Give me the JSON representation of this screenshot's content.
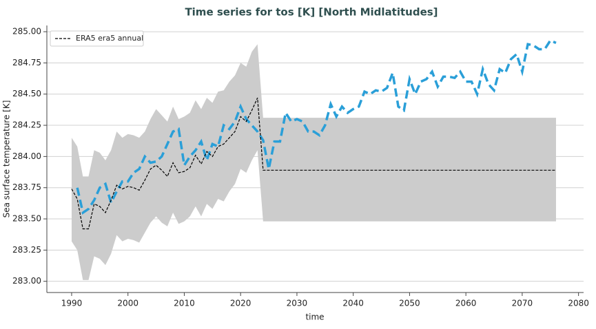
{
  "chart_data": {
    "type": "line",
    "title": "Time series for tos [K] [North Midlatitudes]",
    "xlabel": "time",
    "ylabel": "Sea surface temperature [K]",
    "xlim": [
      1985.6,
      2080.9
    ],
    "ylim": [
      282.91,
      285.05
    ],
    "xticks": [
      1990,
      2000,
      2010,
      2020,
      2030,
      2040,
      2050,
      2060,
      2070,
      2080
    ],
    "yticks": [
      {
        "value": 283,
        "label": "283.00"
      },
      {
        "value": 283.25,
        "label": "283.25"
      },
      {
        "value": 283.5,
        "label": "283.50"
      },
      {
        "value": 283.75,
        "label": "283.75"
      },
      {
        "value": 284,
        "label": "284.00"
      },
      {
        "value": 284.25,
        "label": "284.25"
      },
      {
        "value": 284.5,
        "label": "284.50"
      },
      {
        "value": 284.75,
        "label": "284.75"
      },
      {
        "value": 285,
        "label": "285.00"
      }
    ],
    "grid": true,
    "legend": "upper left",
    "band": {
      "color": "#cccccc",
      "x": [
        1990,
        1991,
        1992,
        1993,
        1994,
        1995,
        1996,
        1997,
        1998,
        1999,
        2000,
        2001,
        2002,
        2003,
        2004,
        2005,
        2006,
        2007,
        2008,
        2009,
        2010,
        2011,
        2012,
        2013,
        2014,
        2015,
        2016,
        2017,
        2018,
        2019,
        2020,
        2021,
        2022,
        2023,
        2024,
        2076
      ],
      "upper": [
        284.15,
        284.08,
        283.84,
        283.84,
        284.05,
        284.03,
        283.97,
        284.05,
        284.2,
        284.15,
        284.18,
        284.17,
        284.15,
        284.2,
        284.3,
        284.38,
        284.33,
        284.28,
        284.4,
        284.3,
        284.32,
        284.35,
        284.45,
        284.38,
        284.47,
        284.43,
        284.52,
        284.53,
        284.6,
        284.65,
        284.75,
        284.72,
        284.84,
        284.9,
        284.31,
        284.31
      ],
      "lower": [
        283.32,
        283.25,
        283.01,
        283.01,
        283.2,
        283.18,
        283.13,
        283.22,
        283.37,
        283.32,
        283.34,
        283.33,
        283.31,
        283.39,
        283.47,
        283.52,
        283.47,
        283.44,
        283.55,
        283.46,
        283.48,
        283.52,
        283.6,
        283.52,
        283.62,
        283.58,
        283.66,
        283.64,
        283.72,
        283.78,
        283.9,
        283.87,
        283.97,
        284.05,
        283.48,
        283.48
      ]
    },
    "series": [
      {
        "color": "#2a9fd8",
        "x": [
          1991,
          1992,
          1993,
          1994,
          1995,
          1996,
          1997,
          1998,
          1999,
          2000,
          2001,
          2002,
          2003,
          2004,
          2005,
          2006,
          2007,
          2008,
          2009,
          2010,
          2011,
          2012,
          2013,
          2014,
          2015,
          2016,
          2017,
          2018,
          2019,
          2020,
          2021,
          2022,
          2023,
          2024,
          2025,
          2026,
          2027,
          2028,
          2029,
          2030,
          2031,
          2032,
          2033,
          2034,
          2035,
          2036,
          2037,
          2038,
          2039,
          2040,
          2041,
          2042,
          2043,
          2044,
          2045,
          2046,
          2047,
          2048,
          2049,
          2050,
          2051,
          2052,
          2053,
          2054,
          2055,
          2056,
          2057,
          2058,
          2059,
          2060,
          2061,
          2062,
          2063,
          2064,
          2065,
          2066,
          2067,
          2068,
          2069,
          2070,
          2071,
          2072,
          2073,
          2074,
          2075,
          2076
        ],
        "values": [
          283.75,
          283.55,
          283.58,
          283.65,
          283.75,
          283.78,
          283.63,
          283.72,
          283.8,
          283.8,
          283.87,
          283.9,
          284.0,
          283.95,
          283.96,
          284.0,
          284.1,
          284.2,
          284.22,
          283.93,
          284.0,
          284.05,
          284.12,
          283.97,
          284.1,
          284.08,
          284.25,
          284.22,
          284.28,
          284.4,
          284.3,
          284.25,
          284.2,
          284.13,
          283.9,
          284.12,
          284.12,
          284.35,
          284.28,
          284.3,
          284.28,
          284.2,
          284.2,
          284.17,
          284.25,
          284.42,
          284.32,
          284.4,
          284.35,
          284.38,
          284.4,
          284.52,
          284.5,
          284.53,
          284.52,
          284.55,
          284.67,
          284.4,
          284.37,
          284.62,
          284.5,
          284.6,
          284.62,
          284.68,
          284.56,
          284.64,
          284.64,
          284.63,
          284.68,
          284.6,
          284.6,
          284.5,
          284.7,
          284.58,
          284.53,
          284.7,
          284.67,
          284.78,
          284.82,
          284.68,
          284.9,
          284.89,
          284.86,
          284.86,
          284.93,
          284.91
        ]
      },
      {
        "name": "ERA5 era5 annual",
        "color": "#000000",
        "x": [
          1990,
          1991,
          1992,
          1993,
          1994,
          1995,
          1996,
          1997,
          1998,
          1999,
          2000,
          2001,
          2002,
          2003,
          2004,
          2005,
          2006,
          2007,
          2008,
          2009,
          2010,
          2011,
          2012,
          2013,
          2014,
          2015,
          2016,
          2017,
          2018,
          2019,
          2020,
          2021,
          2022,
          2023,
          2024,
          2076
        ],
        "values": [
          283.74,
          283.66,
          283.42,
          283.42,
          283.62,
          283.6,
          283.55,
          283.65,
          283.77,
          283.74,
          283.76,
          283.75,
          283.73,
          283.81,
          283.9,
          283.93,
          283.89,
          283.84,
          283.95,
          283.87,
          283.88,
          283.91,
          284.01,
          283.94,
          284.04,
          284.0,
          284.08,
          284.1,
          284.15,
          284.2,
          284.32,
          284.28,
          284.37,
          284.47,
          283.89,
          283.89
        ]
      }
    ]
  }
}
